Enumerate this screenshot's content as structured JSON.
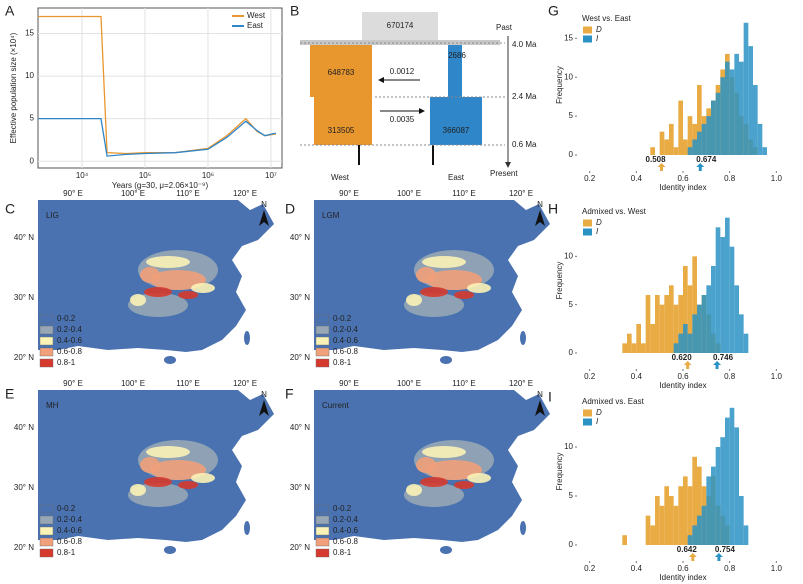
{
  "chart_data": [
    {
      "panel": "A",
      "type": "line",
      "xlabel": "Years (g=30, μ=2.06×10⁻⁹)",
      "ylabel": "Effective population size (×10⁴)",
      "log_x": true,
      "grid": true,
      "legend": "upper right",
      "x": [
        2000,
        20000,
        25000,
        50000,
        100000,
        300000,
        1000000,
        2000000,
        4000000,
        6000000,
        8000000,
        12000000
      ],
      "series": [
        {
          "name": "West",
          "color": "#e8962e",
          "values": [
            17,
            17,
            1,
            0.9,
            1,
            1,
            1.5,
            3,
            5,
            3.5,
            3,
            3.2
          ]
        },
        {
          "name": "East",
          "color": "#2f86c9",
          "values": [
            5,
            5,
            0.6,
            0.8,
            0.9,
            1,
            1.4,
            2.8,
            4.7,
            3.6,
            3,
            3.3
          ]
        }
      ],
      "xlim": [
        2000,
        15000000
      ],
      "ylim": [
        -0.8,
        18
      ],
      "xticks": [
        {
          "value": 10000,
          "label": "10⁴"
        },
        {
          "value": 100000,
          "label": "10⁵"
        },
        {
          "value": 1000000,
          "label": "10⁶"
        },
        {
          "value": 10000000,
          "label": "10⁷"
        }
      ],
      "yticks": [
        0,
        5,
        10,
        15
      ]
    },
    {
      "panel": "G",
      "type": "histogram",
      "title": "West vs. East",
      "xlabel": "Identity index",
      "ylabel": "Frequency",
      "bins": [
        0.3,
        0.32,
        0.34,
        0.36,
        0.38,
        0.4,
        0.42,
        0.44,
        0.46,
        0.48,
        0.5,
        0.52,
        0.54,
        0.56,
        0.58,
        0.6,
        0.62,
        0.64,
        0.66,
        0.68,
        0.7,
        0.72,
        0.74,
        0.76,
        0.78,
        0.8,
        0.82,
        0.84,
        0.86,
        0.88,
        0.9,
        0.92,
        0.94,
        0.96
      ],
      "series": [
        {
          "name": "D",
          "color": "#e9ac45",
          "values": [
            0,
            0,
            0,
            0,
            0,
            0,
            0,
            0,
            1,
            0,
            3,
            2,
            4,
            1,
            7,
            2,
            5,
            4,
            9,
            5,
            6,
            7,
            9,
            11,
            13,
            10,
            8,
            5,
            4,
            2,
            1,
            0,
            0
          ]
        },
        {
          "name": "I",
          "color": "#2b93c4",
          "values": [
            0,
            0,
            0,
            0,
            0,
            0,
            0,
            0,
            0,
            0,
            0,
            0,
            0,
            0,
            0,
            0,
            1,
            2,
            3,
            4,
            5,
            7,
            8,
            10,
            12,
            11,
            13,
            12,
            17,
            14,
            9,
            4,
            1
          ]
        }
      ],
      "markers": [
        0.508,
        0.674
      ],
      "xlim": [
        0.15,
        1.05
      ],
      "ylim": [
        0,
        18
      ],
      "xticks": [
        0.2,
        0.4,
        0.6,
        0.8,
        {
          "value": 1,
          "label": "1.0"
        }
      ],
      "yticks": [
        0,
        5,
        10,
        15
      ]
    },
    {
      "panel": "H",
      "type": "histogram",
      "title": "Admixed vs. West",
      "xlabel": "Identity index",
      "ylabel": "Frequency",
      "bins": [
        0.3,
        0.32,
        0.34,
        0.36,
        0.38,
        0.4,
        0.42,
        0.44,
        0.46,
        0.48,
        0.5,
        0.52,
        0.54,
        0.56,
        0.58,
        0.6,
        0.62,
        0.64,
        0.66,
        0.68,
        0.7,
        0.72,
        0.74,
        0.76,
        0.78,
        0.8,
        0.82,
        0.84,
        0.86,
        0.88,
        0.9,
        0.92,
        0.94,
        0.96
      ],
      "series": [
        {
          "name": "D",
          "color": "#e9ac45",
          "values": [
            0,
            0,
            1,
            2,
            1,
            3,
            1,
            6,
            3,
            6,
            5,
            6,
            7,
            5,
            6,
            9,
            7,
            10,
            5,
            6,
            4,
            2,
            1,
            0,
            0,
            0,
            0,
            0,
            0,
            0,
            0,
            0,
            0
          ]
        },
        {
          "name": "I",
          "color": "#2b93c4",
          "values": [
            0,
            0,
            0,
            0,
            0,
            0,
            0,
            0,
            0,
            0,
            0,
            0,
            0,
            1,
            2,
            3,
            2,
            4,
            5,
            6,
            7,
            9,
            13,
            12,
            14,
            11,
            7,
            4,
            2,
            0,
            0,
            0,
            0
          ]
        }
      ],
      "markers": [
        {
          "value": 0.62,
          "label": "0.620"
        },
        0.746
      ],
      "xlim": [
        0.15,
        1.05
      ],
      "ylim": [
        0,
        15
      ],
      "xticks": [
        0.2,
        0.4,
        0.6,
        0.8,
        {
          "value": 1,
          "label": "1.0"
        }
      ],
      "yticks": [
        0,
        5,
        10
      ]
    },
    {
      "panel": "I",
      "type": "histogram",
      "title": "Admixed vs. East",
      "xlabel": "Identity index",
      "ylabel": "Frequency",
      "bins": [
        0.3,
        0.32,
        0.34,
        0.36,
        0.38,
        0.4,
        0.42,
        0.44,
        0.46,
        0.48,
        0.5,
        0.52,
        0.54,
        0.56,
        0.58,
        0.6,
        0.62,
        0.64,
        0.66,
        0.68,
        0.7,
        0.72,
        0.74,
        0.76,
        0.78,
        0.8,
        0.82,
        0.84,
        0.86,
        0.88,
        0.9,
        0.92,
        0.94,
        0.96
      ],
      "series": [
        {
          "name": "D",
          "color": "#e9ac45",
          "values": [
            0,
            0,
            1,
            0,
            0,
            0,
            0,
            3,
            2,
            5,
            4,
            6,
            5,
            4,
            6,
            7,
            6,
            9,
            8,
            6,
            5,
            7,
            4,
            3,
            2,
            0,
            0,
            0,
            0,
            0,
            0,
            0,
            0
          ]
        },
        {
          "name": "I",
          "color": "#2b93c4",
          "values": [
            0,
            0,
            0,
            0,
            0,
            0,
            0,
            0,
            0,
            0,
            0,
            0,
            0,
            0,
            0,
            0,
            1,
            2,
            3,
            4,
            7,
            8,
            10,
            11,
            13,
            14,
            12,
            5,
            2,
            0,
            0,
            0,
            0
          ]
        }
      ],
      "markers": [
        0.642,
        0.754
      ],
      "xlim": [
        0.15,
        1.05
      ],
      "ylim": [
        0,
        15
      ],
      "xticks": [
        0.2,
        0.4,
        0.6,
        0.8,
        {
          "value": 1,
          "label": "1.0"
        }
      ],
      "yticks": [
        0,
        5,
        10
      ]
    }
  ],
  "diagram": {
    "panel": "B",
    "ancestral": 670174,
    "west_ancient": 648783,
    "west_recent": 313505,
    "east_ancient": 2686,
    "east_recent": 366087,
    "migration_east_to_west": 0.0012,
    "migration_west_to_east": 0.0035,
    "times": [
      "Past",
      "4.0 Ma",
      "2.4 Ma",
      "0.6 Ma",
      "Present"
    ],
    "populations": [
      "West",
      "East"
    ]
  },
  "maps": {
    "lon_labels": [
      "90° E",
      "100° E",
      "110° E",
      "120° E"
    ],
    "lat_labels": [
      "40° N",
      "30° N",
      "20° N"
    ],
    "north": "N",
    "legend": [
      {
        "label": "0-0.2",
        "color": "#4a72b0"
      },
      {
        "label": "0.2-0.4",
        "color": "#97a7b6"
      },
      {
        "label": "0.4-0.6",
        "color": "#fbf2b6"
      },
      {
        "label": "0.6-0.8",
        "color": "#f0a07a"
      },
      {
        "label": "0.8-1",
        "color": "#d63a2e"
      }
    ],
    "panels": [
      {
        "panel": "C",
        "title": "LIG"
      },
      {
        "panel": "D",
        "title": "LGM"
      },
      {
        "panel": "E",
        "title": "MH"
      },
      {
        "panel": "F",
        "title": "Current"
      }
    ]
  }
}
